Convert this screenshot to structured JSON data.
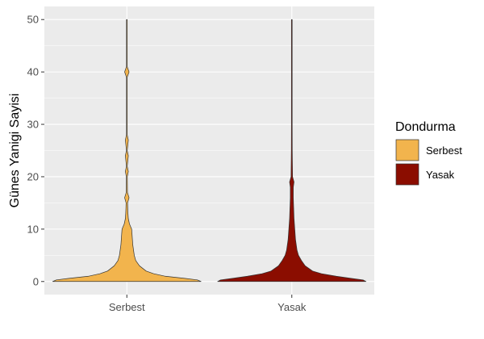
{
  "chart_data": {
    "type": "violin",
    "ylabel": "Günes Yanigi Sayisi",
    "xlabel": "",
    "ylim": [
      -2.5,
      52.5
    ],
    "y_ticks": [
      0,
      10,
      20,
      30,
      40,
      50
    ],
    "categories": [
      "Serbest",
      "Yasak"
    ],
    "grid": true,
    "legend": {
      "title": "Dondurma",
      "placement": "right",
      "entries": [
        "Serbest",
        "Yasak"
      ]
    },
    "colors": {
      "Serbest": "#f2b44d",
      "Yasak": "#8b0d00",
      "panel": "#ebebeb",
      "grid": "#ffffff"
    },
    "series": [
      {
        "category": "Serbest",
        "ymin": 0,
        "ymax": 50,
        "density_profile": [
          [
            0,
            1.0
          ],
          [
            0.3,
            0.95
          ],
          [
            0.6,
            0.78
          ],
          [
            1,
            0.52
          ],
          [
            1.5,
            0.36
          ],
          [
            2,
            0.26
          ],
          [
            3,
            0.17
          ],
          [
            4,
            0.12
          ],
          [
            5,
            0.1
          ],
          [
            6,
            0.09
          ],
          [
            7,
            0.08
          ],
          [
            8,
            0.075
          ],
          [
            9,
            0.07
          ],
          [
            10,
            0.065
          ],
          [
            11,
            0.035
          ],
          [
            12,
            0.02
          ],
          [
            13,
            0.015
          ],
          [
            14,
            0.012
          ],
          [
            15,
            0.01
          ],
          [
            16,
            0.03
          ],
          [
            17,
            0.008
          ],
          [
            20,
            0.006
          ],
          [
            21,
            0.02
          ],
          [
            22,
            0.005
          ],
          [
            24,
            0.02
          ],
          [
            25,
            0.004
          ],
          [
            27,
            0.02
          ],
          [
            28,
            0.003
          ],
          [
            39,
            0.003
          ],
          [
            40,
            0.03
          ],
          [
            41,
            0.003
          ],
          [
            50,
            0.002
          ]
        ]
      },
      {
        "category": "Yasak",
        "ymin": 0,
        "ymax": 50,
        "density_profile": [
          [
            0,
            1.0
          ],
          [
            0.3,
            0.96
          ],
          [
            0.6,
            0.8
          ],
          [
            1,
            0.6
          ],
          [
            1.5,
            0.4
          ],
          [
            2,
            0.28
          ],
          [
            3,
            0.18
          ],
          [
            4,
            0.13
          ],
          [
            5,
            0.09
          ],
          [
            6,
            0.07
          ],
          [
            7,
            0.06
          ],
          [
            8,
            0.05
          ],
          [
            10,
            0.04
          ],
          [
            12,
            0.03
          ],
          [
            14,
            0.025
          ],
          [
            16,
            0.02
          ],
          [
            18,
            0.02
          ],
          [
            19,
            0.03
          ],
          [
            20,
            0.01
          ],
          [
            25,
            0.006
          ],
          [
            30,
            0.005
          ],
          [
            40,
            0.004
          ],
          [
            50,
            0.003
          ]
        ]
      }
    ]
  }
}
